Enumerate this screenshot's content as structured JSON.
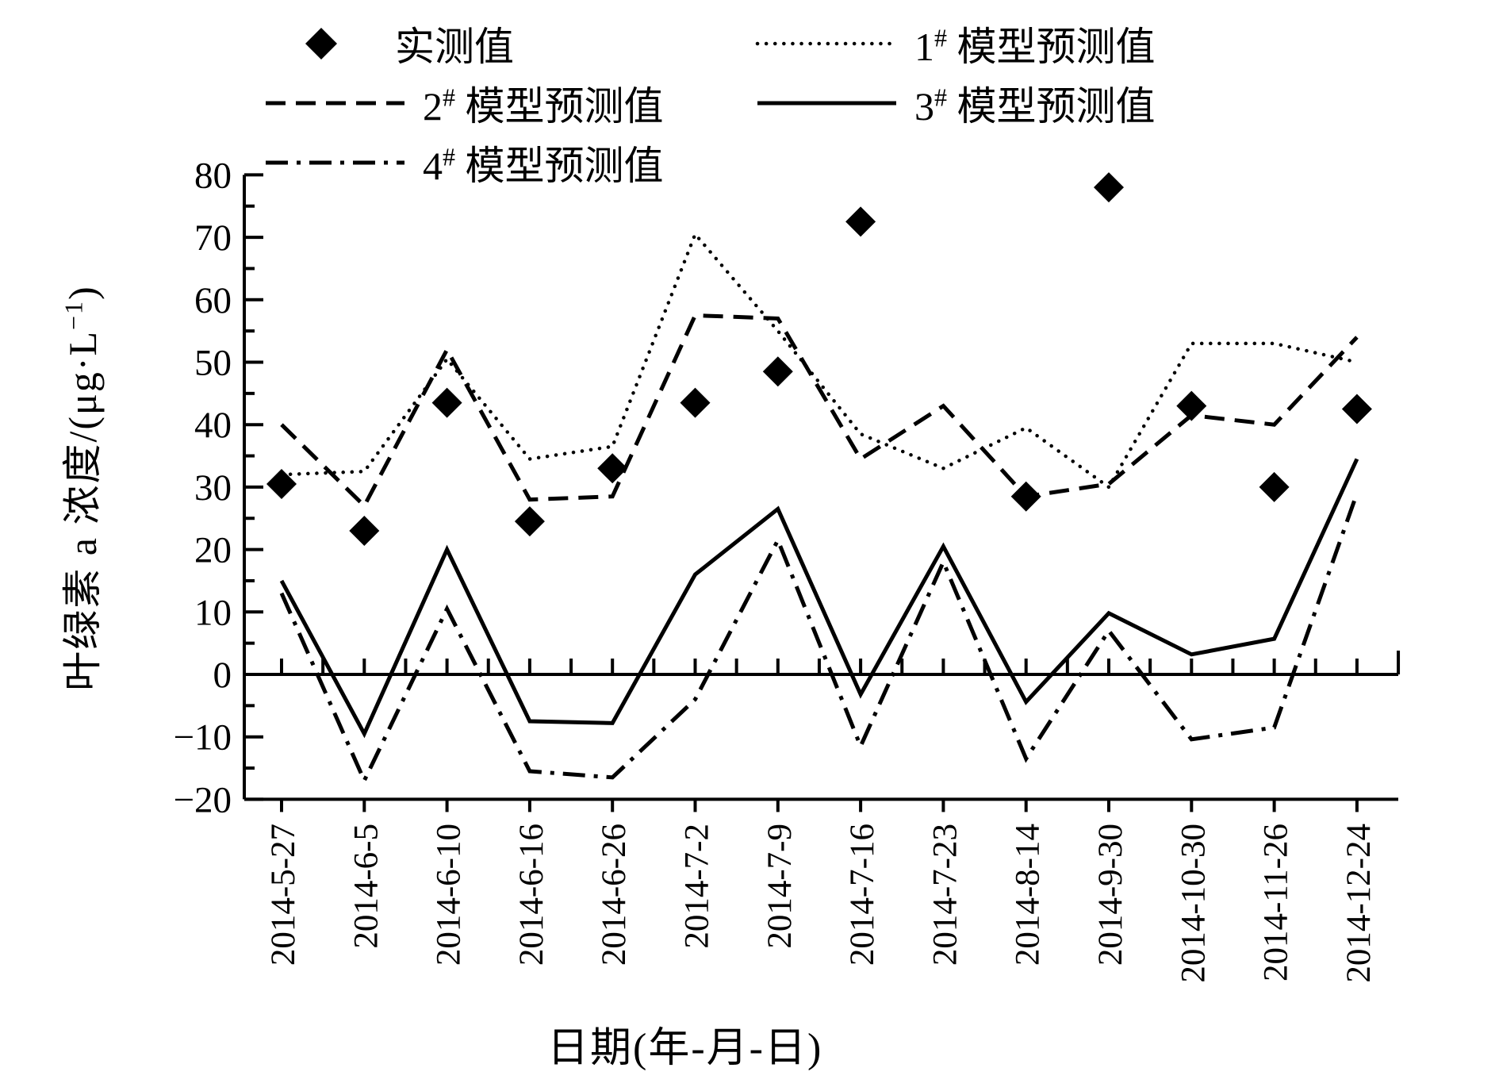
{
  "chart_data": {
    "type": "line",
    "title": "",
    "xlabel": "日期(年-月-日)",
    "ylabel": "叶绿素 a 浓度/(μg·L−1)",
    "ylabel_parts": {
      "main": "叶绿素 a 浓度/(μg·L",
      "sup": "−1",
      "close": ")"
    },
    "ylim": [
      -20,
      80
    ],
    "ytick_step": 10,
    "grid": false,
    "legend_position": "top",
    "yticks": [
      {
        "v": 80,
        "label": "80"
      },
      {
        "v": 70,
        "label": "70"
      },
      {
        "v": 60,
        "label": "60"
      },
      {
        "v": 50,
        "label": "50"
      },
      {
        "v": 40,
        "label": "40"
      },
      {
        "v": 30,
        "label": "30"
      },
      {
        "v": 20,
        "label": "20"
      },
      {
        "v": 10,
        "label": "10"
      },
      {
        "v": 0,
        "label": "0"
      },
      {
        "v": -10,
        "label": "−10"
      },
      {
        "v": -20,
        "label": "−20"
      }
    ],
    "categories": [
      "2014-5-27",
      "2014-6-5",
      "2014-6-10",
      "2014-6-16",
      "2014-6-26",
      "2014-7-2",
      "2014-7-9",
      "2014-7-16",
      "2014-7-23",
      "2014-8-14",
      "2014-9-30",
      "2014-10-30",
      "2014-11-26",
      "2014-12-24"
    ],
    "series": [
      {
        "name": "实测值",
        "kind": "scatter",
        "marker": "diamond",
        "values": [
          30.5,
          23,
          43.5,
          24.5,
          33,
          43.5,
          48.5,
          72.5,
          null,
          28.5,
          78,
          43,
          30,
          42.5
        ]
      },
      {
        "name": "1# 模型预测值",
        "kind": "line",
        "style": "dotted",
        "values": [
          32,
          32.5,
          50.5,
          34.5,
          36.5,
          70.5,
          55,
          38.5,
          33,
          39.5,
          30,
          53,
          53,
          50
        ]
      },
      {
        "name": "2# 模型预测值",
        "kind": "line",
        "style": "dashed",
        "values": [
          40,
          27,
          52,
          28,
          28.5,
          57.5,
          57,
          34.5,
          43,
          28.5,
          30.5,
          41.5,
          40,
          54
        ]
      },
      {
        "name": "3# 模型预测值",
        "kind": "line",
        "style": "solid",
        "values": [
          15,
          -9.5,
          20,
          -7.5,
          -7.8,
          16,
          26.5,
          -3.2,
          20.5,
          -4.4,
          9.8,
          3.2,
          5.7,
          34.5
        ]
      },
      {
        "name": "4# 模型预测值",
        "kind": "line",
        "style": "dashdot",
        "values": [
          13,
          -17,
          10.5,
          -15.5,
          -16.5,
          -4,
          21.5,
          -11.5,
          18,
          -13.5,
          7,
          -10.4,
          -8.5,
          29
        ]
      }
    ],
    "legend": {
      "items": [
        {
          "num": "",
          "hash": "",
          "text": "实测值"
        },
        {
          "num": "1",
          "hash": "#",
          "text": " 模型预测值"
        },
        {
          "num": "2",
          "hash": "#",
          "text": " 模型预测值"
        },
        {
          "num": "3",
          "hash": "#",
          "text": " 模型预测值"
        },
        {
          "num": "4",
          "hash": "#",
          "text": " 模型预测值"
        }
      ]
    }
  }
}
